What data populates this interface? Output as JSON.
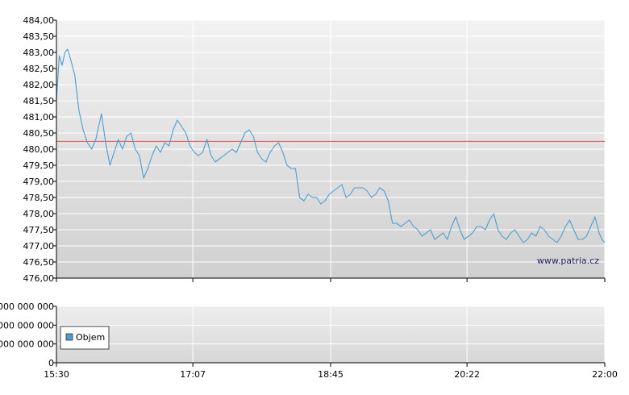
{
  "watermark": "www.patria.cz",
  "colors": {
    "price_line": "#4a9fd0",
    "reference_line": "#e05050",
    "plot_bg_top": "#f2f2f2",
    "plot_bg_bottom": "#d2d2d2",
    "grid": "#ffffff",
    "legend_swatch": "#4a9fd0"
  },
  "chart_data": [
    {
      "type": "line",
      "title": "",
      "xlabel": "",
      "ylabel": "",
      "x_ticks": [
        "15:30",
        "17:07",
        "18:45",
        "20:22",
        "22:00"
      ],
      "xlim": [
        "15:30",
        "22:00"
      ],
      "ylim": [
        476.0,
        484.0
      ],
      "y_ticks": [
        "484,00",
        "483,50",
        "483,00",
        "482,50",
        "482,00",
        "481,50",
        "481,00",
        "480,50",
        "480,00",
        "479,50",
        "479,00",
        "478,50",
        "478,00",
        "477,50",
        "477,00",
        "476,50",
        "476,00"
      ],
      "grid": true,
      "reference_line": 480.24,
      "series": [
        {
          "x": [
            "15:30",
            "15:32",
            "15:34",
            "15:36",
            "15:38",
            "15:40",
            "15:43",
            "15:46",
            "15:49",
            "15:52",
            "15:55",
            "15:58",
            "16:02",
            "16:05",
            "16:08",
            "16:11",
            "16:14",
            "16:17",
            "16:20",
            "16:23",
            "16:26",
            "16:29",
            "16:32",
            "16:35",
            "16:38",
            "16:41",
            "16:44",
            "16:47",
            "16:50",
            "16:53",
            "16:56",
            "16:59",
            "17:02",
            "17:05",
            "17:08",
            "17:11",
            "17:14",
            "17:17",
            "17:20",
            "17:23",
            "17:26",
            "17:29",
            "17:32",
            "17:35",
            "17:38",
            "17:41",
            "17:44",
            "17:47",
            "17:50",
            "17:53",
            "17:56",
            "17:59",
            "18:02",
            "18:05",
            "18:08",
            "18:11",
            "18:14",
            "18:17",
            "18:20",
            "18:23",
            "18:26",
            "18:29",
            "18:32",
            "18:35",
            "18:38",
            "18:41",
            "18:44",
            "18:47",
            "18:50",
            "18:53",
            "18:56",
            "18:59",
            "19:02",
            "19:05",
            "19:08",
            "19:11",
            "19:14",
            "19:17",
            "19:20",
            "19:23",
            "19:26",
            "19:29",
            "19:32",
            "19:35",
            "19:38",
            "19:41",
            "19:44",
            "19:47",
            "19:50",
            "19:53",
            "19:56",
            "19:59",
            "20:02",
            "20:05",
            "20:08",
            "20:11",
            "20:14",
            "20:17",
            "20:20",
            "20:23",
            "20:26",
            "20:29",
            "20:32",
            "20:35",
            "20:38",
            "20:41",
            "20:44",
            "20:47",
            "20:50",
            "20:53",
            "20:56",
            "20:59",
            "21:02",
            "21:05",
            "21:08",
            "21:11",
            "21:14",
            "21:17",
            "21:20",
            "21:23",
            "21:26",
            "21:29",
            "21:32",
            "21:35",
            "21:38",
            "21:41",
            "21:44",
            "21:47",
            "21:50",
            "21:53",
            "21:56",
            "21:58",
            "22:00"
          ],
          "values": [
            481.5,
            482.9,
            482.6,
            483.0,
            483.1,
            482.8,
            482.3,
            481.2,
            480.6,
            480.2,
            480.0,
            480.3,
            481.1,
            480.2,
            479.5,
            479.9,
            480.3,
            480.0,
            480.4,
            480.5,
            480.0,
            479.8,
            479.1,
            479.4,
            479.8,
            480.1,
            479.9,
            480.2,
            480.1,
            480.6,
            480.9,
            480.7,
            480.5,
            480.1,
            479.9,
            479.8,
            479.9,
            480.3,
            479.8,
            479.6,
            479.7,
            479.8,
            479.9,
            480.0,
            479.9,
            480.2,
            480.5,
            480.6,
            480.4,
            479.9,
            479.7,
            479.6,
            479.9,
            480.1,
            480.2,
            479.9,
            479.5,
            479.4,
            479.4,
            478.5,
            478.4,
            478.6,
            478.5,
            478.5,
            478.3,
            478.4,
            478.6,
            478.7,
            478.8,
            478.9,
            478.5,
            478.6,
            478.8,
            478.8,
            478.8,
            478.7,
            478.5,
            478.6,
            478.8,
            478.7,
            478.4,
            477.7,
            477.7,
            477.6,
            477.7,
            477.8,
            477.6,
            477.5,
            477.3,
            477.4,
            477.5,
            477.2,
            477.3,
            477.4,
            477.2,
            477.6,
            477.9,
            477.5,
            477.2,
            477.3,
            477.4,
            477.6,
            477.6,
            477.5,
            477.8,
            478.0,
            477.5,
            477.3,
            477.2,
            477.4,
            477.5,
            477.3,
            477.1,
            477.2,
            477.4,
            477.3,
            477.6,
            477.5,
            477.3,
            477.2,
            477.1,
            477.3,
            477.6,
            477.8,
            477.5,
            477.2,
            477.2,
            477.3,
            477.6,
            477.9,
            477.4,
            477.2,
            477.1
          ]
        }
      ]
    },
    {
      "type": "area",
      "title": "",
      "x_ticks": [
        "15:30",
        "17:07",
        "18:45",
        "20:22",
        "22:00"
      ],
      "y_ticks": [
        "000 000 000",
        "000 000 000",
        "000 000 000",
        "0"
      ],
      "legend": "Objem",
      "legend_position": "left",
      "grid": true,
      "series": []
    }
  ]
}
